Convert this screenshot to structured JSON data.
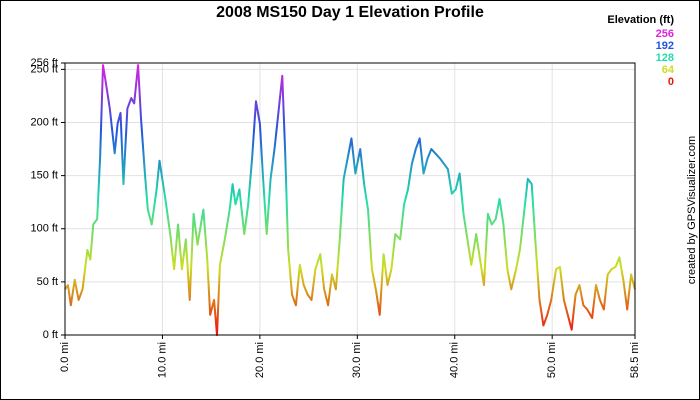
{
  "chart_data": {
    "type": "line",
    "title": "2008 MS150 Day 1 Elevation Profile",
    "credit": "created by GPSVisualizer.com",
    "legend": {
      "title": "Elevation (ft)",
      "values": [
        256,
        192,
        128,
        64,
        0
      ],
      "colors": [
        "#dd22dd",
        "#2255dd",
        "#22ddaa",
        "#ccdd22",
        "#ee1111"
      ]
    },
    "xlim": [
      0,
      58.5
    ],
    "xticks": [
      {
        "value": 0,
        "label": "0.0 mi"
      },
      {
        "value": 10,
        "label": "10.0 mi"
      },
      {
        "value": 20,
        "label": "20.0 mi"
      },
      {
        "value": 30,
        "label": "30.0 mi"
      },
      {
        "value": 40,
        "label": "40.0 mi"
      },
      {
        "value": 50,
        "label": "50.0 mi"
      },
      {
        "value": 58.5,
        "label": "58.5 mi"
      }
    ],
    "ylim": [
      0,
      256
    ],
    "yticks": [
      {
        "value": 0,
        "label": "0 ft"
      },
      {
        "value": 50,
        "label": "50 ft"
      },
      {
        "value": 100,
        "label": "100 ft"
      },
      {
        "value": 150,
        "label": "150 ft"
      },
      {
        "value": 200,
        "label": "200 ft"
      },
      {
        "value": 250,
        "label": "250 ft"
      },
      {
        "value": 256,
        "label": "256 ft"
      }
    ],
    "grid": true,
    "x": [
      0,
      0.3,
      0.6,
      1.0,
      1.4,
      1.8,
      2.3,
      2.6,
      2.9,
      3.3,
      3.6,
      3.9,
      4.2,
      4.6,
      5.1,
      5.4,
      5.7,
      6.0,
      6.4,
      6.8,
      7.1,
      7.5,
      7.8,
      8.2,
      8.5,
      8.9,
      9.4,
      9.7,
      10.3,
      10.8,
      11.2,
      11.6,
      12.0,
      12.4,
      12.8,
      13.2,
      13.6,
      14.2,
      14.6,
      14.9,
      15.3,
      15.6,
      15.9,
      16.4,
      16.9,
      17.2,
      17.5,
      17.9,
      18.4,
      18.8,
      19.2,
      19.6,
      20.0,
      20.3,
      20.7,
      21.1,
      21.5,
      21.9,
      22.3,
      22.6,
      22.9,
      23.3,
      23.7,
      24.1,
      24.5,
      24.9,
      25.3,
      25.7,
      26.2,
      26.6,
      27.0,
      27.4,
      27.8,
      28.2,
      28.6,
      29.0,
      29.4,
      29.8,
      30.3,
      30.7,
      31.1,
      31.5,
      31.9,
      32.3,
      32.7,
      33.1,
      33.5,
      33.9,
      34.4,
      34.8,
      35.2,
      35.6,
      36.0,
      36.4,
      36.8,
      37.2,
      37.6,
      38.0,
      38.5,
      38.9,
      39.3,
      39.7,
      40.1,
      40.5,
      40.9,
      41.3,
      41.7,
      42.2,
      42.6,
      43.0,
      43.4,
      43.8,
      44.2,
      44.6,
      45.0,
      45.4,
      45.8,
      46.3,
      46.7,
      47.1,
      47.5,
      47.9,
      48.3,
      48.7,
      49.1,
      49.5,
      49.9,
      50.4,
      50.8,
      51.2,
      51.6,
      52.0,
      52.4,
      52.8,
      53.2,
      53.6,
      54.1,
      54.5,
      54.9,
      55.3,
      55.7,
      56.1,
      56.5,
      56.9,
      57.3,
      57.7,
      58.1,
      58.5
    ],
    "values": [
      43,
      47,
      28,
      52,
      33,
      43,
      80,
      71,
      104,
      109,
      166,
      254,
      237,
      213,
      171,
      199,
      209,
      142,
      213,
      223,
      218,
      254,
      204,
      152,
      118,
      104,
      137,
      164,
      128,
      95,
      62,
      104,
      62,
      90,
      33,
      114,
      85,
      118,
      71,
      19,
      33,
      0,
      66,
      90,
      118,
      142,
      123,
      137,
      95,
      123,
      166,
      220,
      199,
      152,
      95,
      147,
      175,
      209,
      244,
      171,
      81,
      38,
      28,
      66,
      47,
      38,
      33,
      62,
      76,
      43,
      28,
      57,
      43,
      90,
      147,
      166,
      185,
      152,
      175,
      142,
      118,
      62,
      43,
      19,
      76,
      47,
      62,
      95,
      90,
      123,
      137,
      161,
      175,
      185,
      152,
      166,
      175,
      171,
      166,
      161,
      156,
      133,
      137,
      152,
      114,
      90,
      66,
      95,
      71,
      47,
      114,
      104,
      109,
      128,
      104,
      62,
      43,
      62,
      81,
      114,
      147,
      142,
      85,
      33,
      9,
      19,
      33,
      62,
      64,
      33,
      19,
      5,
      38,
      47,
      28,
      24,
      16,
      47,
      33,
      24,
      57,
      62,
      64,
      73,
      52,
      24,
      57,
      43
    ]
  }
}
